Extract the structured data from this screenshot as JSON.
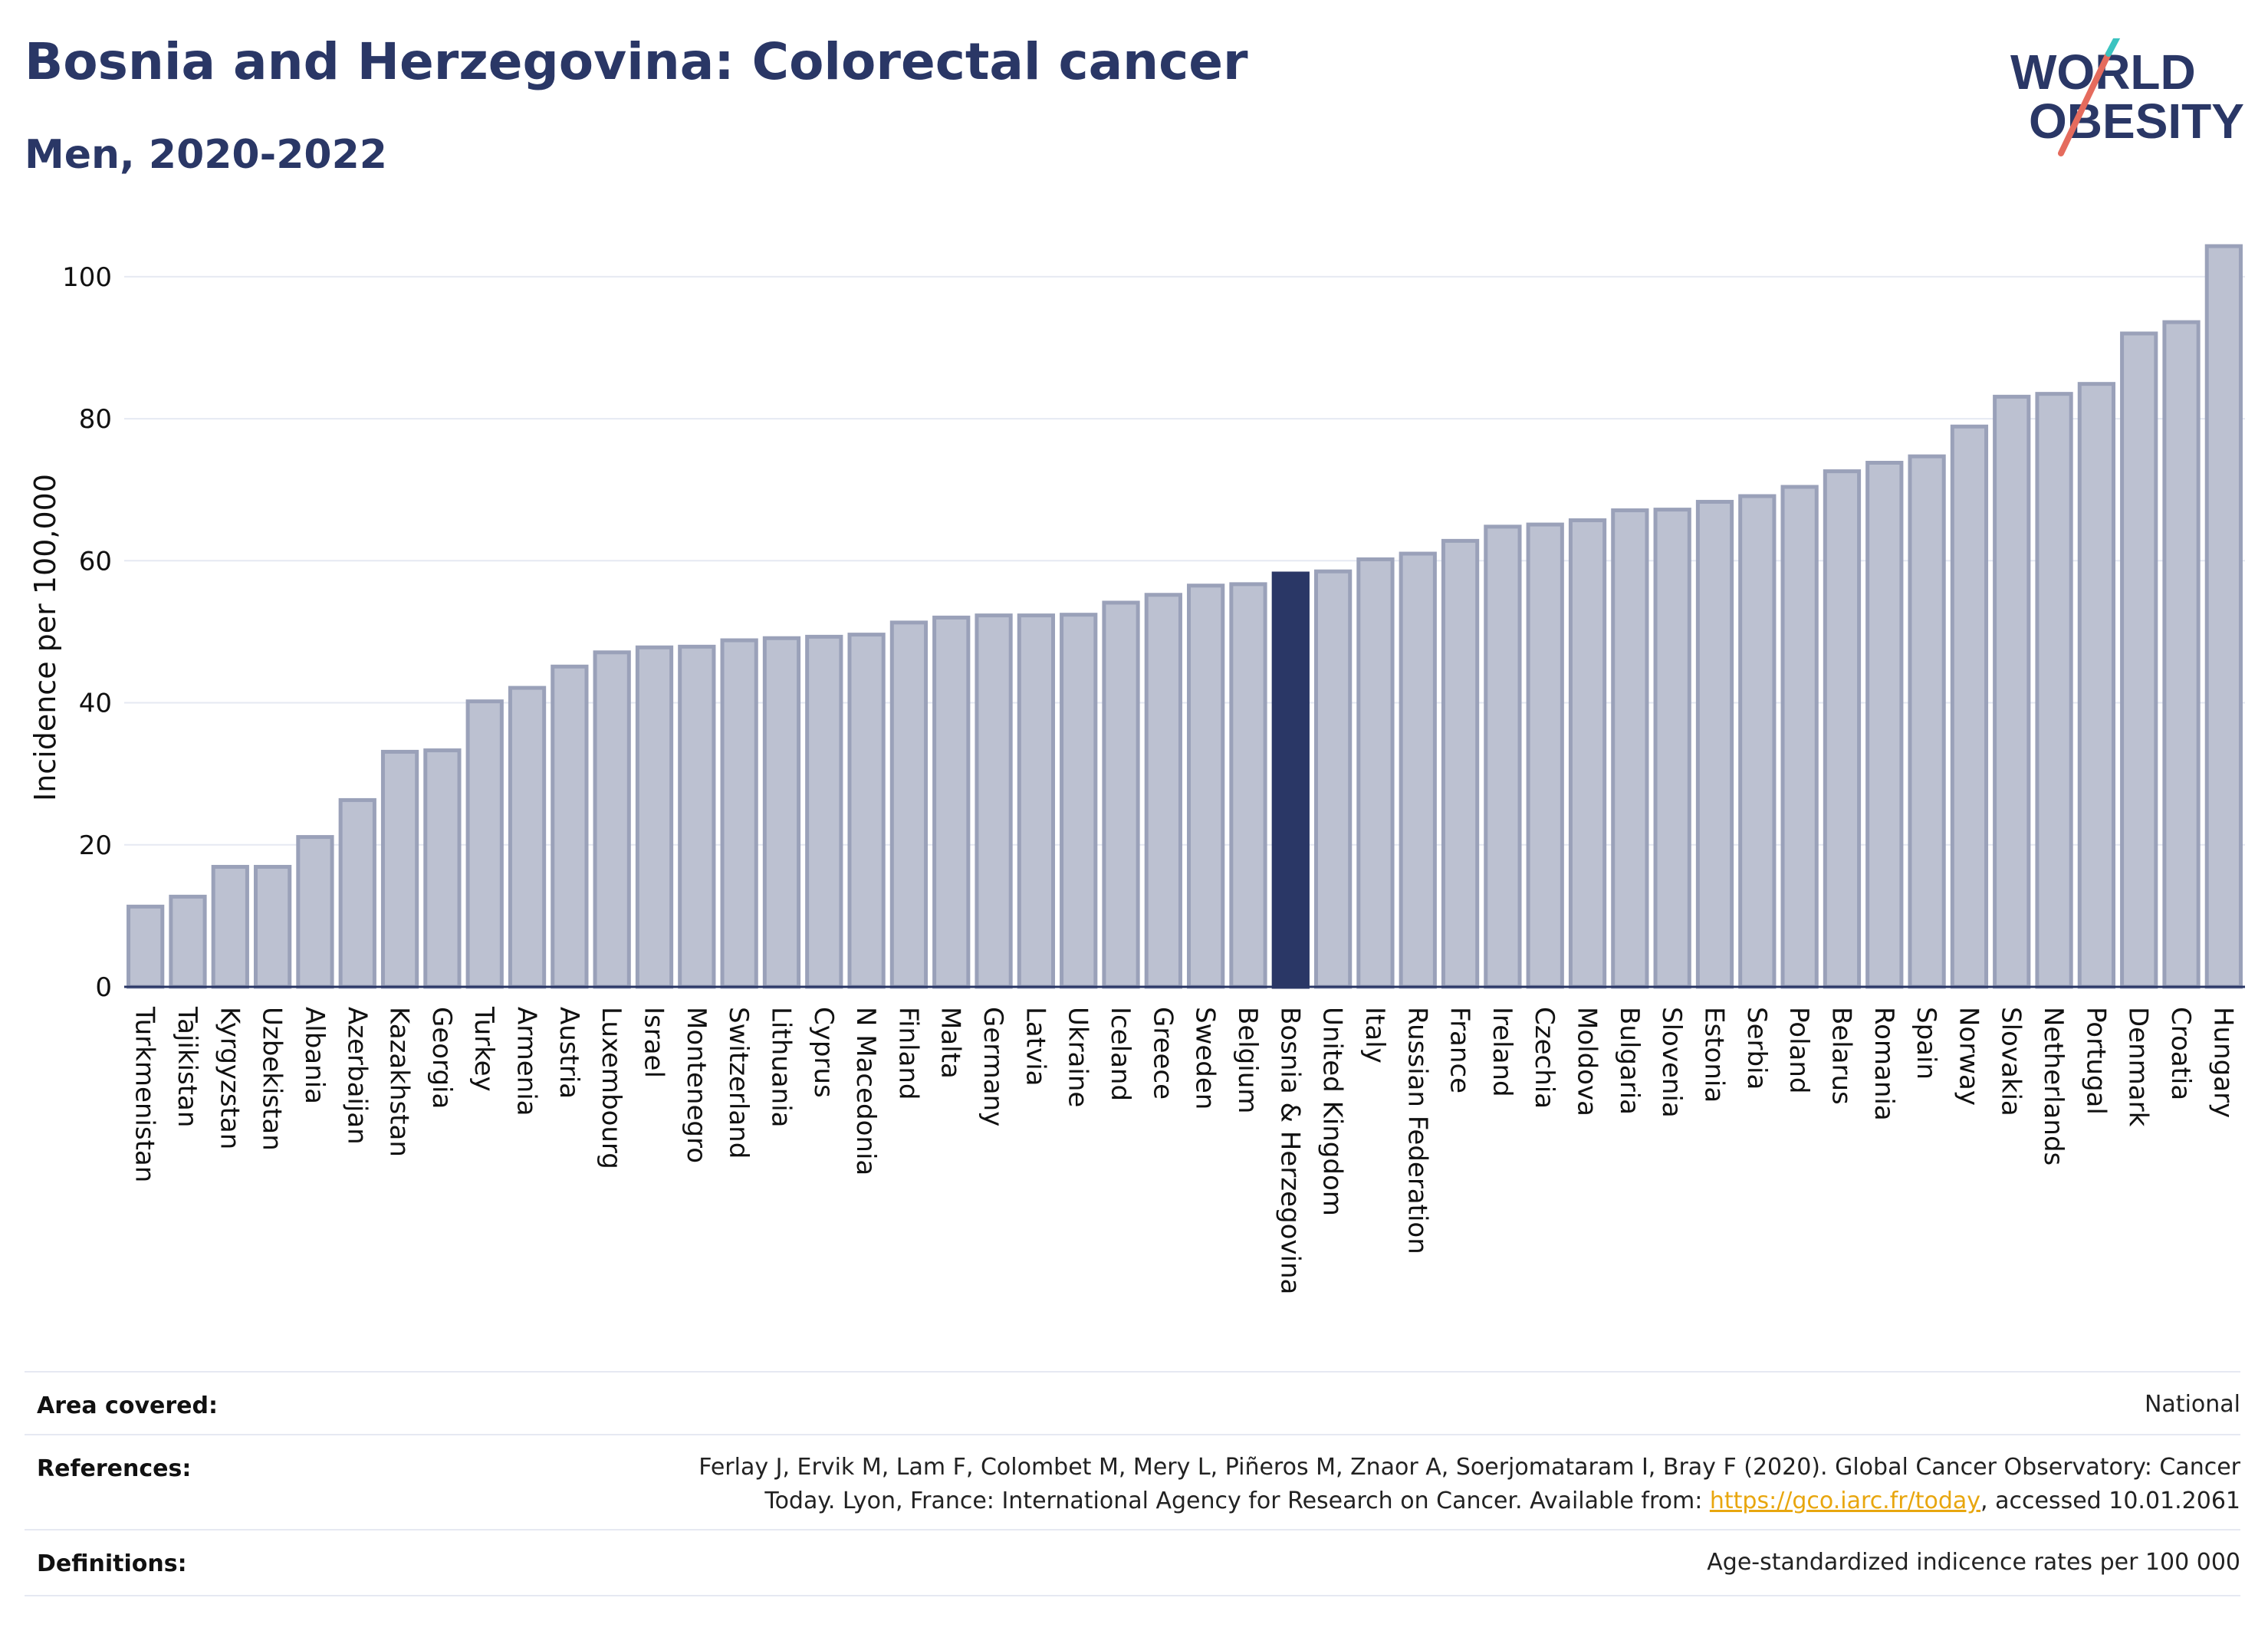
{
  "header": {
    "title": "Bosnia and Herzegovina: Colorectal cancer",
    "subtitle": "Men, 2020-2022"
  },
  "logo": {
    "line1": "WORLD",
    "line2": "OBESITY"
  },
  "chart_data": {
    "type": "bar",
    "title": "Bosnia and Herzegovina: Colorectal cancer",
    "subtitle": "Men, 2020-2022",
    "ylabel": "Incidence per 100,000",
    "ylim": [
      0,
      107
    ],
    "yticks": [
      0,
      20,
      40,
      60,
      80,
      100
    ],
    "grid": true,
    "highlight": "Bosnia & Herzegovina",
    "colors": {
      "bar": "#bcc1d1",
      "bar_edge": "#9aa1b9",
      "highlight": "#2a3766",
      "grid": "#e6e9f2",
      "axis": "#2a3766"
    },
    "categories": [
      "Turkmenistan",
      "Tajikistan",
      "Kyrgyzstan",
      "Uzbekistan",
      "Albania",
      "Azerbaijan",
      "Kazakhstan",
      "Georgia",
      "Turkey",
      "Armenia",
      "Austria",
      "Luxembourg",
      "Israel",
      "Montenegro",
      "Switzerland",
      "Lithuania",
      "Cyprus",
      "N Macedonia",
      "Finland",
      "Malta",
      "Germany",
      "Latvia",
      "Ukraine",
      "Iceland",
      "Greece",
      "Sweden",
      "Belgium",
      "Bosnia & Herzegovina",
      "United Kingdom",
      "Italy",
      "Russian Federation",
      "France",
      "Ireland",
      "Czechia",
      "Moldova",
      "Bulgaria",
      "Slovenia",
      "Estonia",
      "Serbia",
      "Poland",
      "Belarus",
      "Romania",
      "Spain",
      "Norway",
      "Slovakia",
      "Netherlands",
      "Portugal",
      "Denmark",
      "Croatia",
      "Hungary"
    ],
    "values": [
      11.3,
      12.7,
      16.9,
      16.9,
      21.1,
      26.3,
      33.1,
      33.3,
      40.2,
      42.1,
      45.1,
      47.1,
      47.8,
      47.9,
      48.8,
      49.1,
      49.3,
      49.6,
      51.3,
      52.0,
      52.3,
      52.3,
      52.4,
      54.1,
      55.2,
      56.5,
      56.7,
      58.2,
      58.5,
      60.2,
      61.0,
      62.8,
      64.8,
      65.1,
      65.7,
      67.1,
      67.2,
      68.3,
      69.1,
      70.4,
      72.6,
      73.8,
      74.7,
      78.9,
      83.1,
      83.5,
      84.9,
      92.0,
      93.6,
      104.3
    ]
  },
  "footer": {
    "area_label": "Area covered:",
    "area_value": "National",
    "references_label": "References:",
    "references_line1": "Ferlay J, Ervik M, Lam F, Colombet M, Mery L, Piñeros M, Znaor A, Soerjomataram I, Bray F (2020). Global Cancer Observatory: Cancer",
    "references_line2_pre": "Today. Lyon, France: International Agency for Research on Cancer. Available from: ",
    "references_link": "https://gco.iarc.fr/today",
    "references_line2_post": ", accessed 10.01.2061",
    "definitions_label": "Definitions:",
    "definitions_value": "Age-standardized indicence rates per 100 000"
  }
}
